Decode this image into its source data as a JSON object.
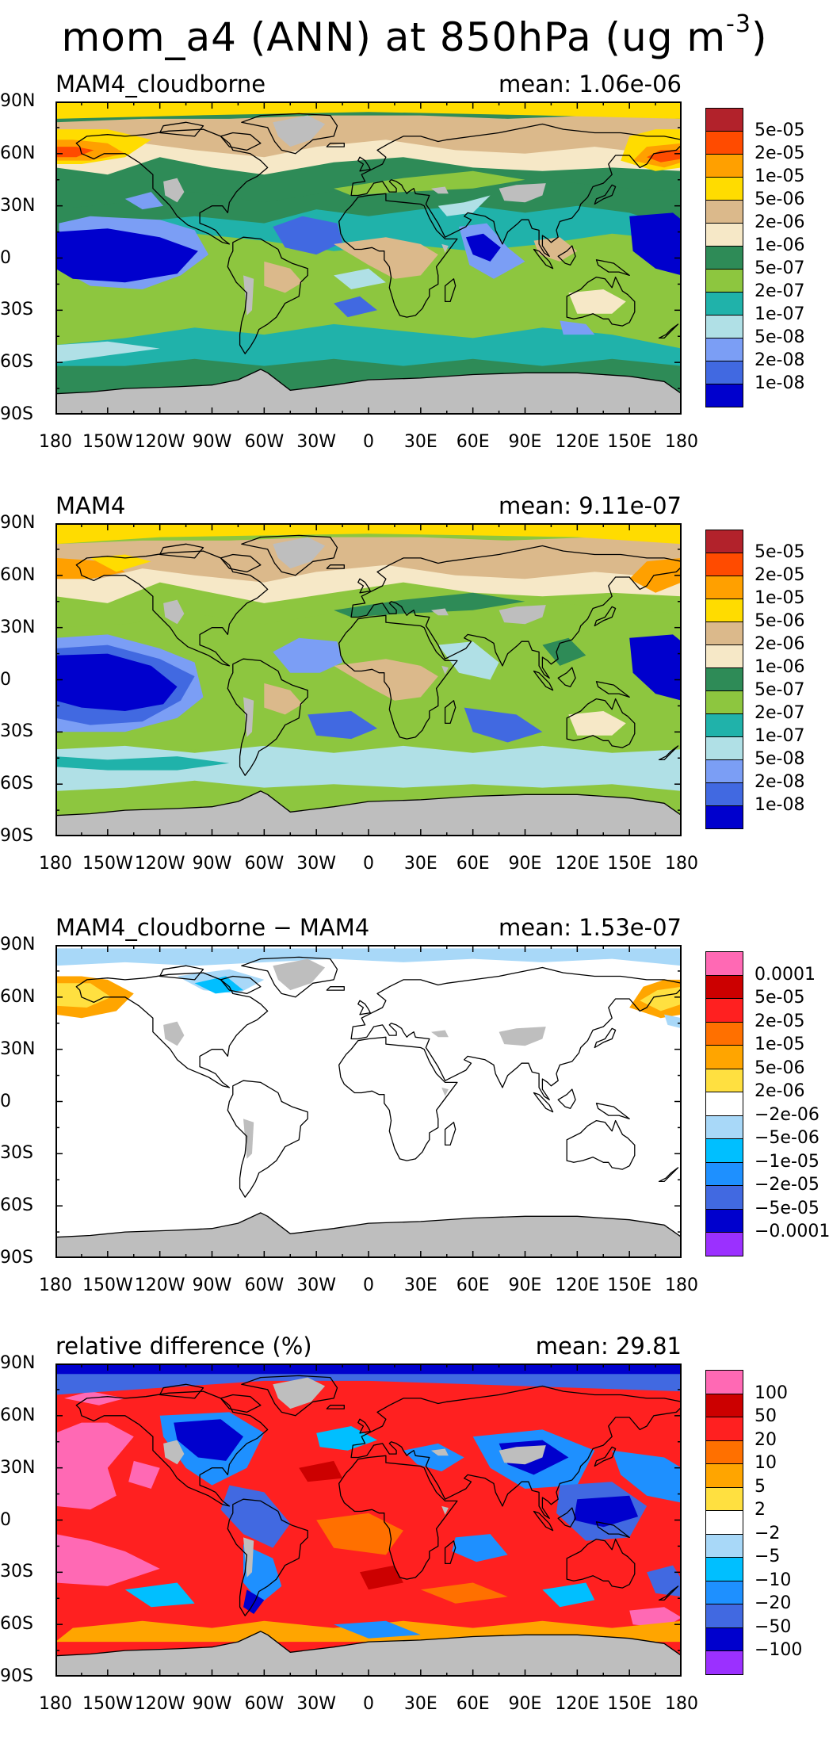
{
  "title": {
    "prefix": "mom_a4 (ANN) at 850hPa (ug m",
    "exponent": "-3",
    "suffix": ")"
  },
  "axes": {
    "lat_labels": [
      "90N",
      "60N",
      "30N",
      "0",
      "30S",
      "60S",
      "90S"
    ],
    "lon_labels": [
      "180",
      "150W",
      "120W",
      "90W",
      "60W",
      "30W",
      "0",
      "30E",
      "60E",
      "90E",
      "120E",
      "150E",
      "180"
    ]
  },
  "palettes": {
    "field": [
      "#b2222b",
      "#ff4b00",
      "#ffa000",
      "#ffdc00",
      "#dbb98b",
      "#f6e8c7",
      "#2e8b57",
      "#8dc63f",
      "#20b2aa",
      "#b0e0e6",
      "#7b9ef5",
      "#4169e1",
      "#0000cd"
    ],
    "diff": [
      "#ff69b4",
      "#cc0000",
      "#ff2020",
      "#ff7000",
      "#ffa500",
      "#ffe040",
      "#ffffff",
      "#a8d8f8",
      "#00bfff",
      "#1e90ff",
      "#4169e1",
      "#0000cd",
      "#9b30ff"
    ]
  },
  "panels": [
    {
      "name": "MAM4_cloudborne",
      "mean": "mean: 1.06e-06",
      "levels": [
        "5e-05",
        "2e-05",
        "1e-05",
        "5e-06",
        "2e-06",
        "1e-06",
        "5e-07",
        "2e-07",
        "1e-07",
        "5e-08",
        "2e-08",
        "1e-08"
      ]
    },
    {
      "name": "MAM4",
      "mean": "mean: 9.11e-07",
      "levels": [
        "5e-05",
        "2e-05",
        "1e-05",
        "5e-06",
        "2e-06",
        "1e-06",
        "5e-07",
        "2e-07",
        "1e-07",
        "5e-08",
        "2e-08",
        "1e-08"
      ]
    },
    {
      "name": "MAM4_cloudborne − MAM4",
      "mean": "mean: 1.53e-07",
      "levels": [
        "0.0001",
        "5e-05",
        "2e-05",
        "1e-05",
        "5e-06",
        "2e-06",
        "−2e-06",
        "−5e-06",
        "−1e-05",
        "−2e-05",
        "−5e-05",
        "−0.0001"
      ]
    },
    {
      "name": "relative difference (%)",
      "mean": "mean: 29.81",
      "levels": [
        "100",
        "50",
        "20",
        "10",
        "5",
        "2",
        "−2",
        "−5",
        "−10",
        "−20",
        "−50",
        "−100"
      ]
    }
  ],
  "colors": {
    "missing": "#bebebe",
    "coastline": "#000000"
  }
}
